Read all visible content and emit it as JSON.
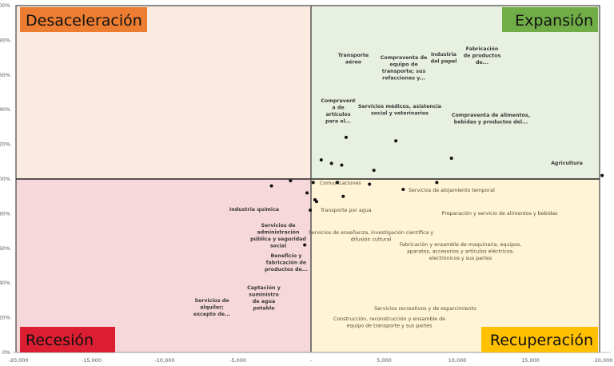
{
  "chart_data": {
    "type": "scatter",
    "xlim": [
      -20000,
      20000
    ],
    "ylim": [
      0,
      200
    ],
    "x_ticks": [
      "-20,000",
      "-15,000",
      "-10,000",
      "-5,000",
      "-",
      "5,000",
      "10,000",
      "15,000",
      "20,000"
    ],
    "y_ticks": [
      "200%",
      "180%",
      "160%",
      "140%",
      "120%",
      "100%",
      "80%",
      "60%",
      "40%",
      "20%",
      "0%"
    ],
    "divider": {
      "x": 0,
      "y": 100
    },
    "quadrants": [
      {
        "label": "Desaceleración",
        "color": "#ED7D31",
        "background": "#FBEADF"
      },
      {
        "label": "Expansión",
        "color": "#70AD47",
        "background": "#E8F0E1"
      },
      {
        "label": "Recesión",
        "color": "#DC1E32",
        "background": "#F6D7DA"
      },
      {
        "label": "Recuperación",
        "color": "#FFC000",
        "background": "#FFF4D6"
      }
    ],
    "points": [
      {
        "x": 700,
        "y": 111
      },
      {
        "x": 1400,
        "y": 109
      },
      {
        "x": 2100,
        "y": 108
      },
      {
        "x": 2400,
        "y": 124
      },
      {
        "x": 4300,
        "y": 105
      },
      {
        "x": 5800,
        "y": 122
      },
      {
        "x": 9600,
        "y": 112
      },
      {
        "x": 19900,
        "y": 102
      },
      {
        "x": 150,
        "y": 98
      },
      {
        "x": 1800,
        "y": 98
      },
      {
        "x": 4000,
        "y": 97
      },
      {
        "x": 6300,
        "y": 94
      },
      {
        "x": 8600,
        "y": 98
      },
      {
        "x": 2200,
        "y": 90
      },
      {
        "x": 270,
        "y": 88
      },
      {
        "x": 380,
        "y": 87
      },
      {
        "x": -50,
        "y": 82
      },
      {
        "x": -430,
        "y": 62
      },
      {
        "x": -270,
        "y": 92
      },
      {
        "x": -2700,
        "y": 96
      },
      {
        "x": -1400,
        "y": 99
      }
    ],
    "labels": [
      {
        "lines": [
          "Transporte",
          "aéreo"
        ]
      },
      {
        "lines": [
          "Compraventa de",
          "equipo de",
          "transporte; sus",
          "refacciones y..."
        ]
      },
      {
        "lines": [
          "Industria",
          "del papel"
        ]
      },
      {
        "lines": [
          "Fabricación",
          "de productos",
          "de..."
        ]
      },
      {
        "lines": [
          "Compravent",
          "a de",
          "artículos",
          "para el..."
        ]
      },
      {
        "lines": [
          "Servicios médicos, asistencia",
          "social y veterinarios"
        ]
      },
      {
        "lines": [
          "Compraventa de alimentos,",
          "bebidas y productos del..."
        ]
      },
      {
        "lines": [
          "Agricultura"
        ]
      },
      {
        "lines": [
          "Comunicaciones"
        ]
      },
      {
        "lines": [
          "Servicios de alojamiento temporal"
        ]
      },
      {
        "lines": [
          "Industria química"
        ]
      },
      {
        "lines": [
          "Transporte por agua"
        ]
      },
      {
        "lines": [
          "Preparación y servicio de alimentos y bebidas"
        ]
      },
      {
        "lines": [
          "Servicios de",
          "administración",
          "pública y seguridad",
          "social"
        ]
      },
      {
        "lines": [
          "Servicios de enseñanza, investigación científica y",
          "difusión cultural"
        ]
      },
      {
        "lines": [
          "Fabricación y ensamble de maquinaria, equipos,",
          "aparatos, accesorios y artículos eléctricos,",
          "electrónicos y sus partes"
        ]
      },
      {
        "lines": [
          "Beneficio y",
          "fabricación de",
          "productos de..."
        ]
      },
      {
        "lines": [
          "Captación y",
          "suministro",
          "de agua",
          "potable"
        ]
      },
      {
        "lines": [
          "Servicios de",
          "alquiler;",
          "excepto de..."
        ]
      },
      {
        "lines": [
          "Servicios recreativos y de esparcimiento"
        ]
      },
      {
        "lines": [
          "Construcción, reconstrucción y ensamble de",
          "equipo de transporte y sus partes"
        ]
      }
    ]
  }
}
